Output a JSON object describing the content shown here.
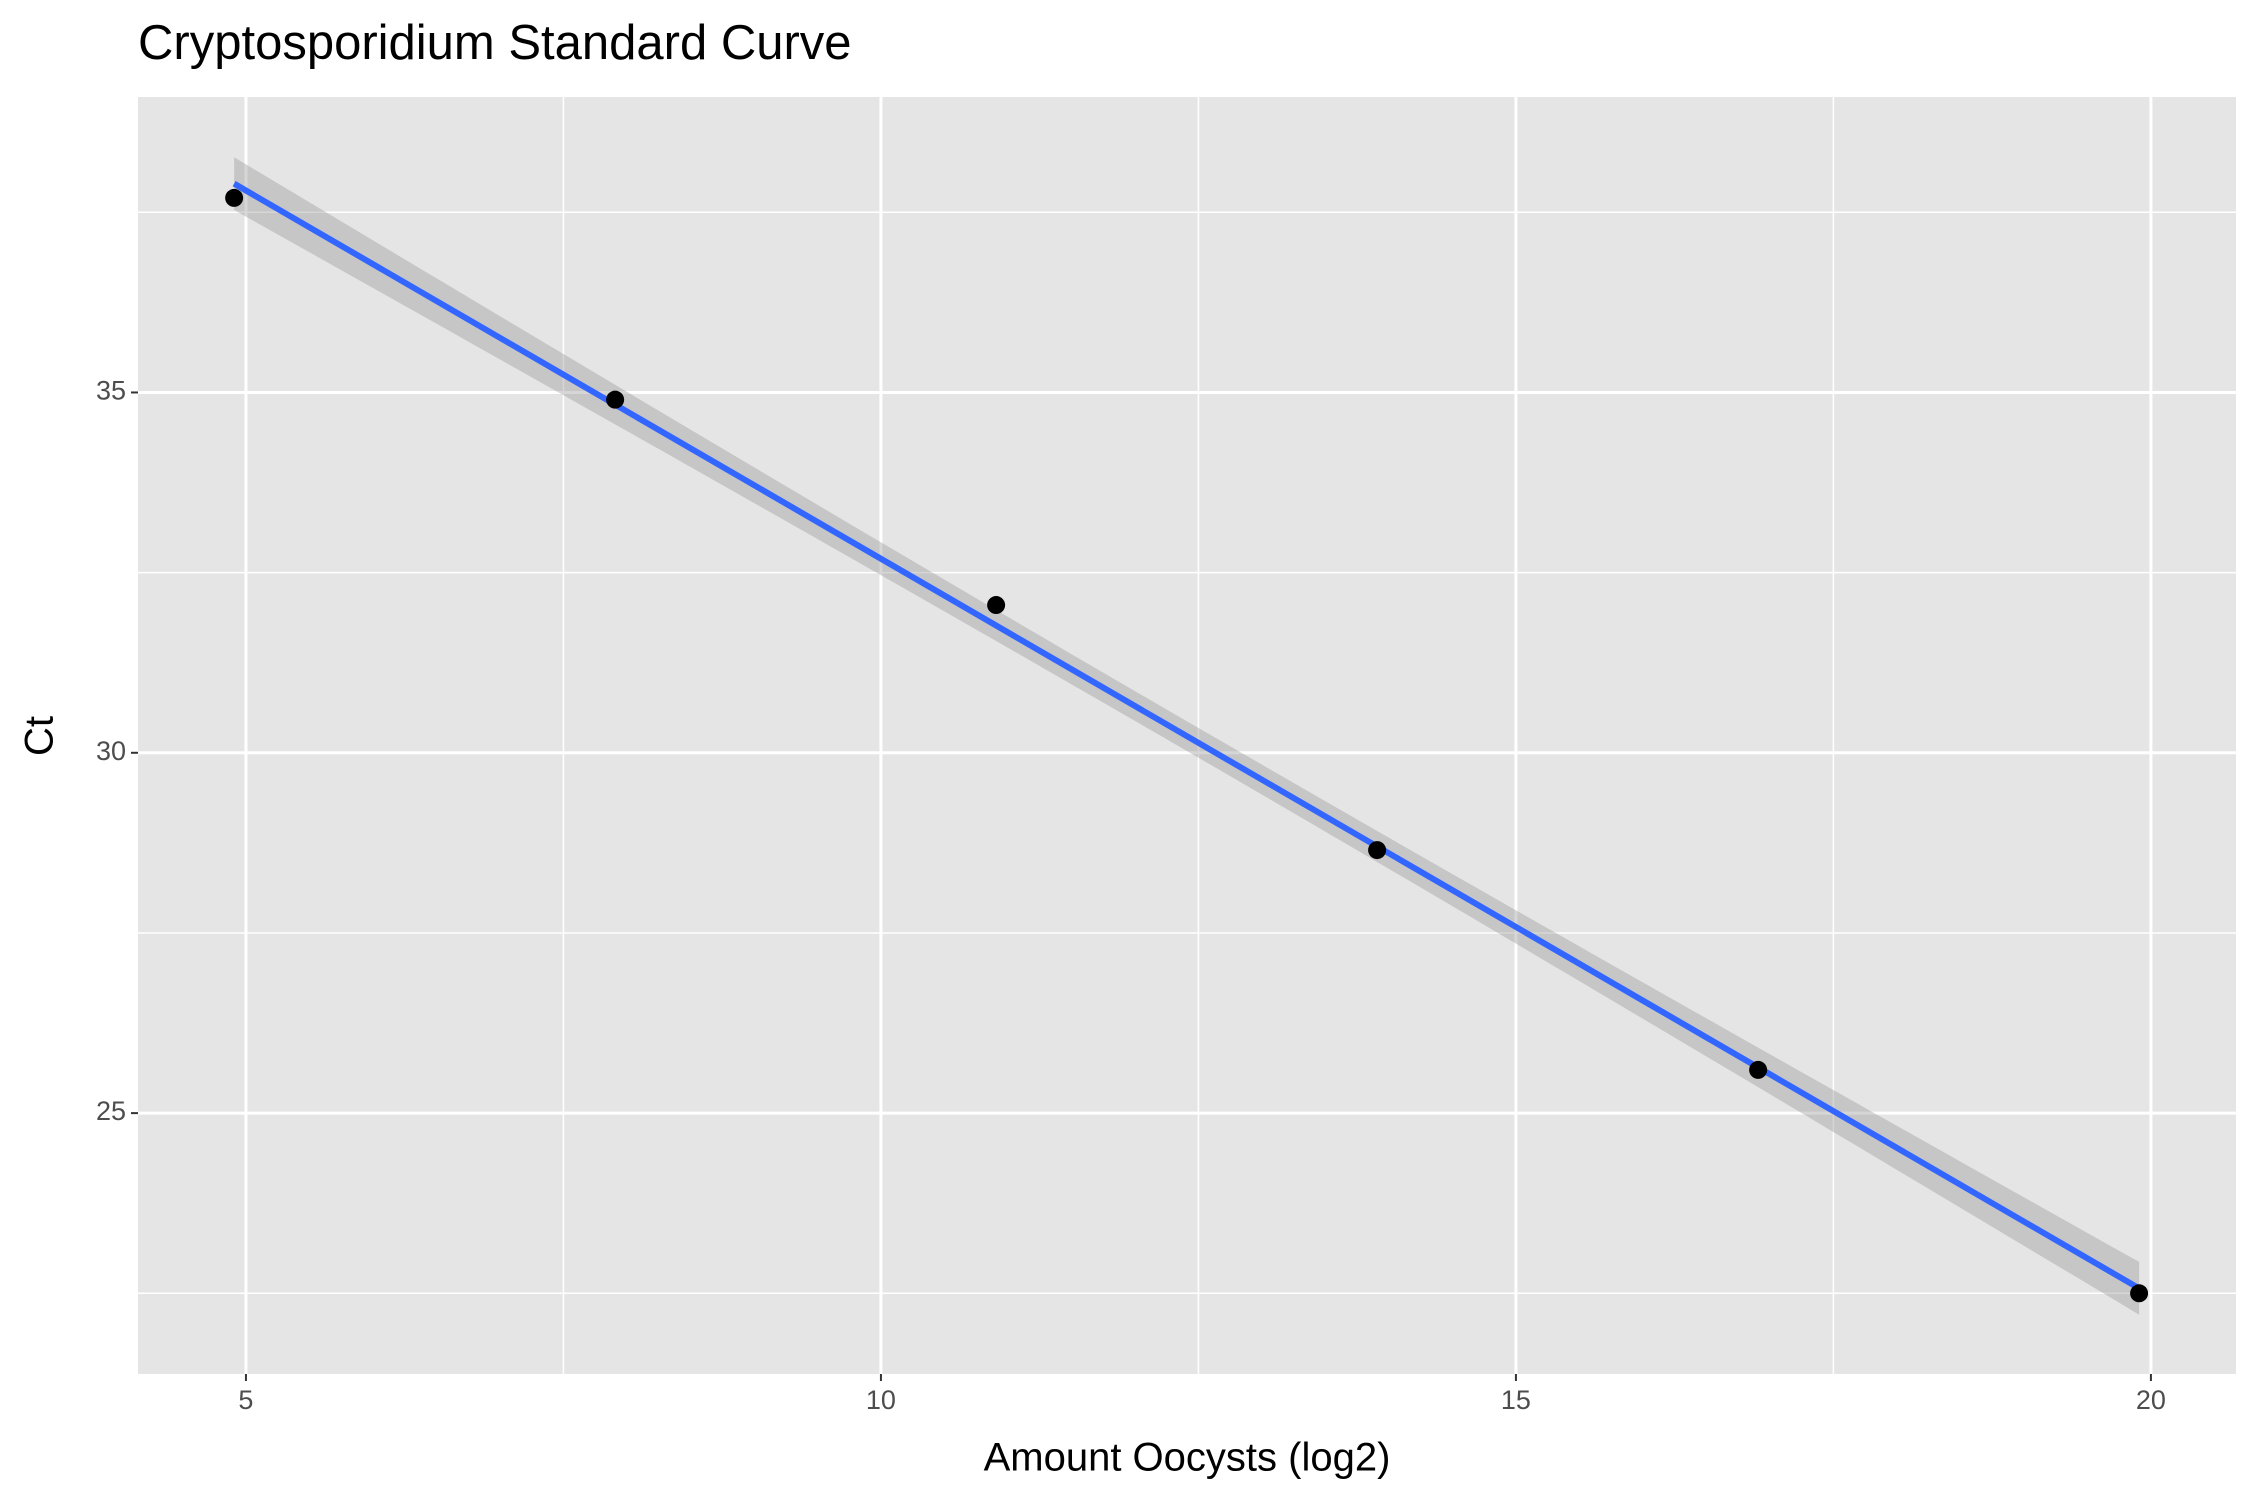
{
  "chart_data": {
    "type": "scatter",
    "title": "Cryptosporidium Standard Curve",
    "x_label": "Amount Oocysts (log2)",
    "y_label": "Ct",
    "x": [
      4.907,
      7.907,
      10.907,
      13.907,
      16.907,
      19.907
    ],
    "values": [
      37.7,
      34.9,
      32.05,
      28.65,
      25.6,
      22.5
    ],
    "color": "#000000",
    "fit_color": "#3366ff",
    "fit": "lm",
    "xlim": [
      4.15,
      20.67
    ],
    "ylim": [
      21.38,
      39.1
    ],
    "xticks": [
      5,
      10,
      15,
      20
    ],
    "yticks": [
      25,
      30,
      35
    ],
    "x_minor_grid": [
      7.5,
      12.5,
      17.5
    ],
    "y_minor_grid": [
      22.5,
      27.5,
      32.5,
      37.5
    ],
    "grid": true
  }
}
